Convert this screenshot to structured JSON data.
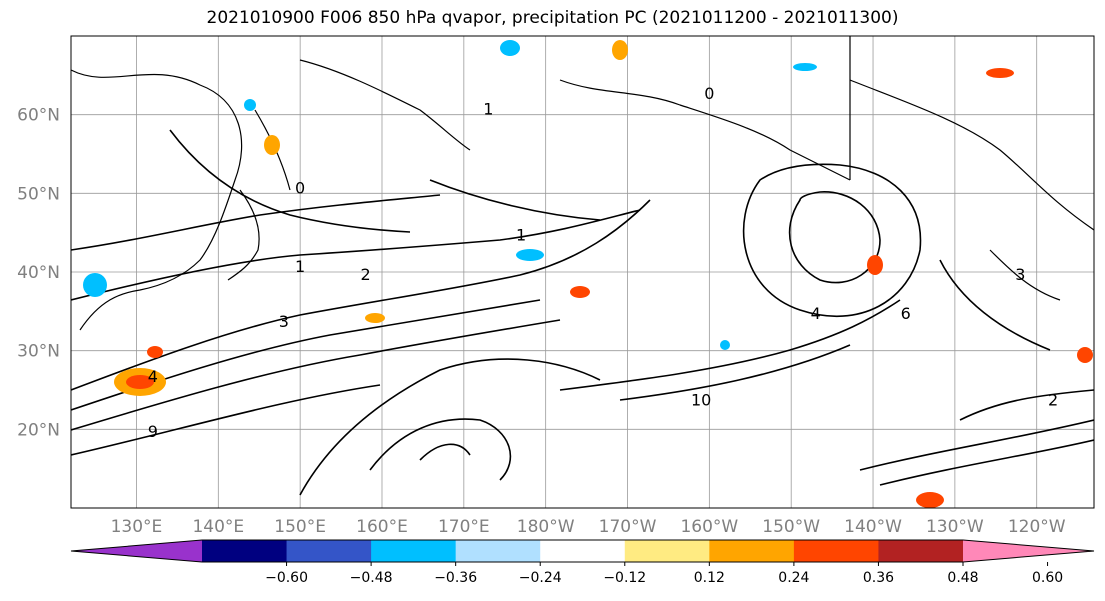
{
  "title": "2021010900 F006 850 hPa qvapor, precipitation PC (2021011200 - 2021011300)",
  "map": {
    "latitude_labels": [
      "60°N",
      "50°N",
      "40°N",
      "30°N",
      "20°N"
    ],
    "latitude_values": [
      60,
      50,
      40,
      30,
      20
    ],
    "longitude_labels": [
      "130°E",
      "140°E",
      "150°E",
      "160°E",
      "170°E",
      "180°W",
      "170°W",
      "160°W",
      "150°W",
      "140°W",
      "130°W",
      "120°W"
    ],
    "longitude_values": [
      130,
      140,
      150,
      160,
      170,
      180,
      190,
      200,
      210,
      220,
      230,
      240
    ],
    "extent": {
      "lon_min": 122,
      "lon_max": 247,
      "lat_min": 10,
      "lat_max": 70
    },
    "contour_labels": [
      {
        "text": "1",
        "lon": 177,
        "lat": 44
      },
      {
        "text": "1",
        "lon": 150,
        "lat": 40
      },
      {
        "text": "2",
        "lon": 158,
        "lat": 39
      },
      {
        "text": "3",
        "lon": 148,
        "lat": 33
      },
      {
        "text": "4",
        "lon": 132,
        "lat": 26
      },
      {
        "text": "9",
        "lon": 132,
        "lat": 19
      },
      {
        "text": "4",
        "lon": 213,
        "lat": 34
      },
      {
        "text": "6",
        "lon": 224,
        "lat": 34
      },
      {
        "text": "10",
        "lon": 199,
        "lat": 23
      },
      {
        "text": "3",
        "lon": 238,
        "lat": 39
      },
      {
        "text": "2",
        "lon": 242,
        "lat": 23
      },
      {
        "text": "0",
        "lon": 200,
        "lat": 62
      },
      {
        "text": "0",
        "lon": 150,
        "lat": 50
      },
      {
        "text": "1",
        "lon": 173,
        "lat": 60
      }
    ]
  },
  "colorbar": {
    "tick_labels": [
      "−0.60",
      "−0.48",
      "−0.36",
      "−0.24",
      "−0.12",
      "0.12",
      "0.24",
      "0.36",
      "0.48",
      "0.60"
    ],
    "colors": [
      "#9932cc",
      "#000080",
      "#3455c8",
      "#00bfff",
      "#b0e0ff",
      "#ffffff",
      "#ffeb82",
      "#ffa500",
      "#ff4500",
      "#b22222",
      "#ff88b8"
    ]
  }
}
